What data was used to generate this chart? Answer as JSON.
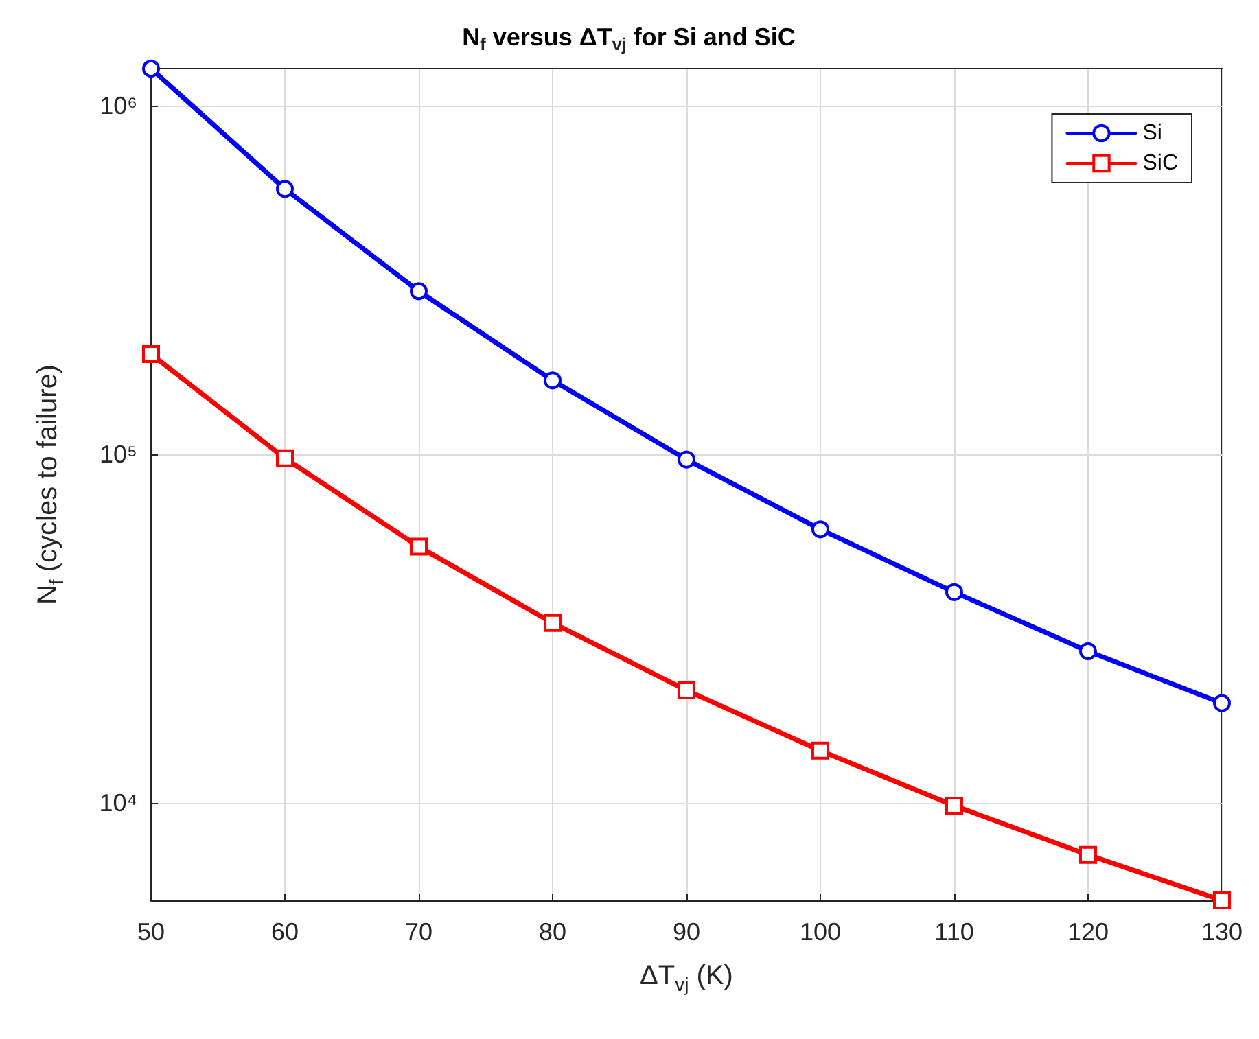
{
  "chart_data": {
    "type": "line",
    "title": "N$_{f}$ versus ΔT$_{vj}$ for Si and SiC",
    "xlabel": "ΔT$_{vj}$ (K)",
    "ylabel": "N$_{f}$ (cycles to failure)",
    "x": [
      50,
      60,
      70,
      80,
      90,
      100,
      110,
      120,
      130
    ],
    "series": [
      {
        "name": "Si",
        "color": "#0000ff",
        "marker": "circle",
        "values": [
          1280000,
          578000,
          294000,
          163000,
          96600,
          60900,
          40200,
          27200,
          19300
        ]
      },
      {
        "name": "SiC",
        "color": "#ff0000",
        "marker": "square",
        "values": [
          194000,
          97400,
          54300,
          32800,
          21000,
          14100,
          9800,
          7080,
          5240
        ]
      }
    ],
    "log": "y",
    "xlim": [
      50,
      130
    ],
    "xticks": [
      50,
      60,
      70,
      80,
      90,
      100,
      110,
      120,
      130
    ],
    "ylim": [
      5240,
      1280000
    ],
    "yticks": [
      {
        "value": 10000,
        "label": "10⁴"
      },
      {
        "value": 100000,
        "label": "10⁵"
      },
      {
        "value": 1000000,
        "label": "10⁶"
      }
    ],
    "grid": true,
    "legend": "top right",
    "line_style": "solid"
  }
}
